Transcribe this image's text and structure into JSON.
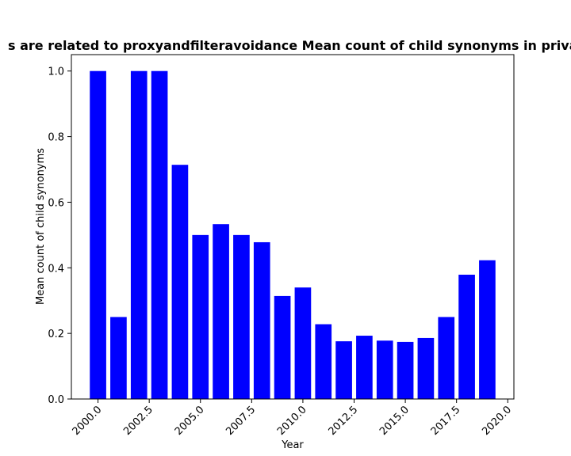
{
  "chart_data": {
    "type": "bar",
    "title": "s are related to proxyandfilteravoidance Mean count of child synonyms in privac",
    "xlabel": "Year",
    "ylabel": "Mean count of child synonyms",
    "xlim": [
      1998.7,
      2020.3
    ],
    "ylim": [
      0,
      1.05
    ],
    "x_ticks": [
      "2000.0",
      "2002.5",
      "2005.0",
      "2007.5",
      "2010.0",
      "2012.5",
      "2015.0",
      "2017.5",
      "2020.0"
    ],
    "y_ticks": [
      "0.0",
      "0.2",
      "0.4",
      "0.6",
      "0.8",
      "1.0"
    ],
    "bar_color": "#0000ff",
    "grid": false,
    "x": [
      2000,
      2001,
      2002,
      2003,
      2004,
      2005,
      2006,
      2007,
      2008,
      2009,
      2010,
      2011,
      2012,
      2013,
      2014,
      2015,
      2016,
      2017,
      2018,
      2019
    ],
    "values": [
      1.0,
      0.25,
      1.0,
      1.0,
      0.714,
      0.5,
      0.533,
      0.5,
      0.478,
      0.314,
      0.34,
      0.228,
      0.176,
      0.193,
      0.178,
      0.174,
      0.186,
      0.25,
      0.379,
      0.423
    ]
  }
}
